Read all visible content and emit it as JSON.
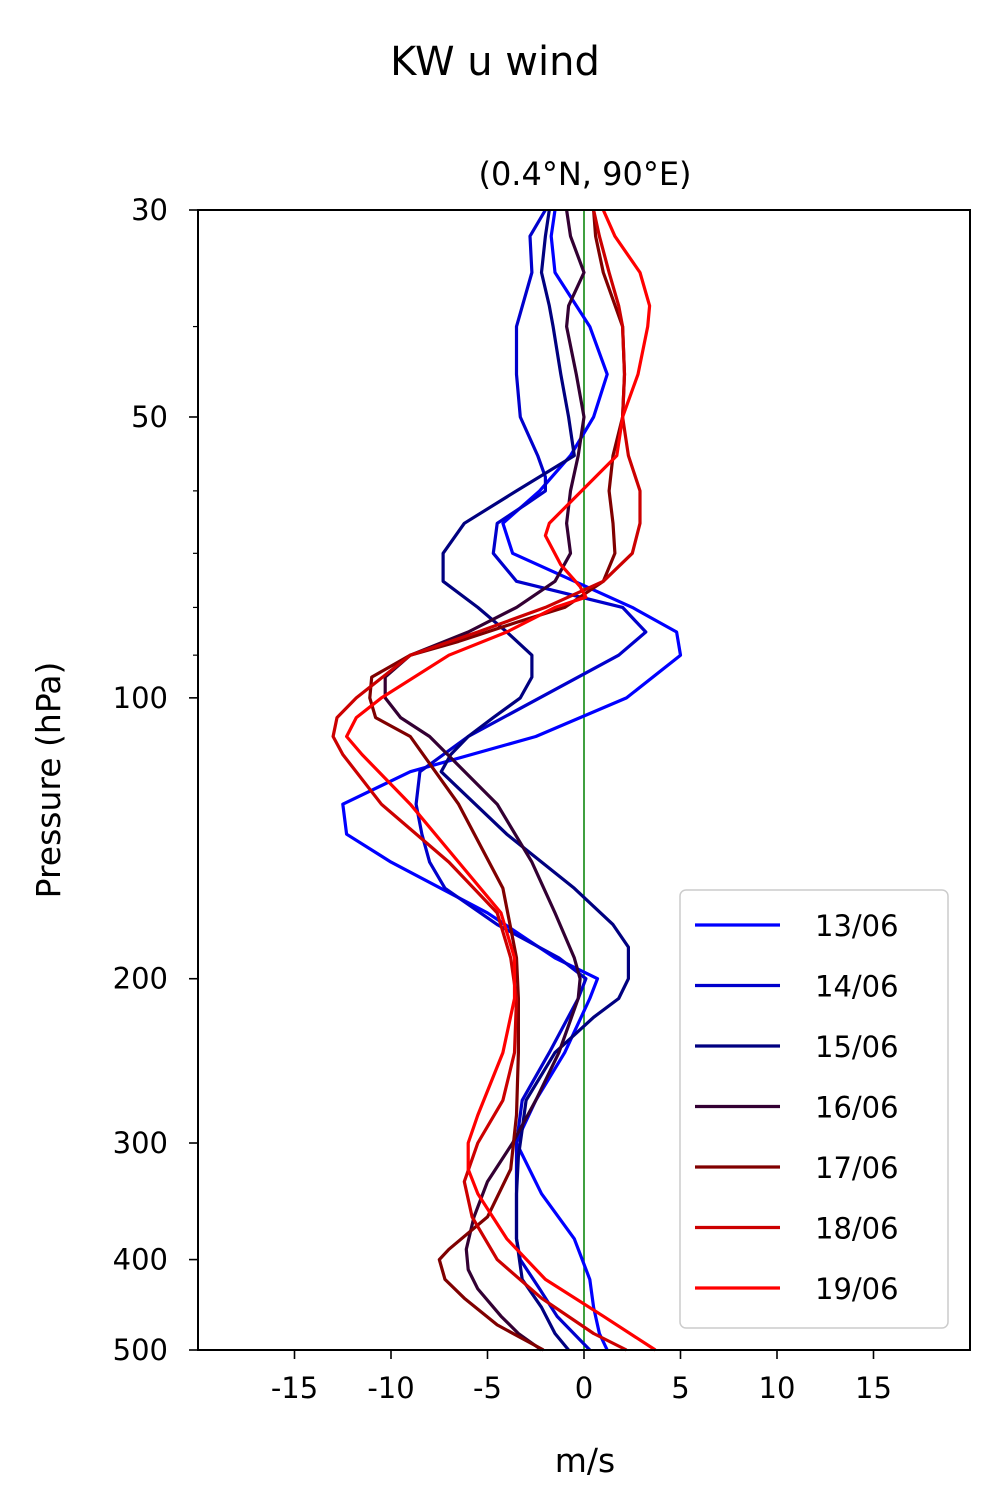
{
  "chart_data": {
    "type": "line",
    "title": "KW u wind",
    "subtitle": "(0.4°N, 90°E)",
    "xlabel": "m/s",
    "ylabel": "Pressure (hPa)",
    "xlim": [
      -20,
      20
    ],
    "ylim": [
      500,
      30
    ],
    "y_scale": "log",
    "xticks": [
      -15,
      -10,
      -5,
      0,
      5,
      10,
      15
    ],
    "xtick_labels": [
      "-15",
      "-10",
      "-5",
      "0",
      "5",
      "10",
      "15"
    ],
    "yticks": [
      30,
      50,
      100,
      200,
      300,
      400,
      500
    ],
    "ytick_labels": [
      "30",
      "50",
      "100",
      "200",
      "300",
      "400",
      "500"
    ],
    "minor_yticks": [
      40,
      60,
      70,
      80,
      90
    ],
    "zero_line_color": "#008000",
    "grid": false,
    "legend_position": "lower right",
    "series": [
      {
        "name": "13/06",
        "color": "#0000ff",
        "x": [
          -1.5,
          -1.7,
          -1.5,
          0.3,
          1.2,
          0.5,
          -0.7,
          -2.3,
          -4.2,
          -3.7,
          2.5,
          4.8,
          5,
          2.2,
          -2.5,
          -9,
          -12.5,
          -12.3,
          -10,
          -5,
          -1.5,
          0.7,
          0.3,
          -1,
          -2.5,
          -3.2,
          -3.5,
          -2.2,
          -0.5,
          0.3,
          0.5,
          0.8,
          1.2
        ],
        "y": [
          30,
          32,
          35,
          40,
          45,
          50,
          55,
          60,
          65,
          70,
          80,
          85,
          90,
          100,
          110,
          120,
          130,
          140,
          150,
          170,
          190,
          200,
          210,
          240,
          270,
          290,
          300,
          340,
          380,
          420,
          450,
          480,
          500
        ]
      },
      {
        "name": "14/06",
        "color": "#0000cc",
        "x": [
          -2,
          -2.8,
          -2.7,
          -3.5,
          -3.5,
          -3.3,
          -2.4,
          -2,
          -2,
          -3,
          -4.5,
          -4.7,
          -3.5,
          2,
          3.2,
          1.8,
          -6,
          -8.5,
          -8.7,
          -8.4,
          -8,
          -7.2,
          -4.5,
          -1.3,
          0.1,
          -0.3,
          -1.8,
          -3.2,
          -3.5,
          -3.5,
          -3.5,
          -3.3,
          -2.3,
          -1.4,
          0.3
        ],
        "y": [
          30,
          32,
          35,
          40,
          45,
          50,
          55,
          58,
          60,
          62,
          65,
          70,
          75,
          80,
          85,
          90,
          110,
          120,
          130,
          140,
          150,
          160,
          175,
          190,
          200,
          210,
          240,
          270,
          300,
          340,
          380,
          400,
          430,
          460,
          500
        ]
      },
      {
        "name": "15/06",
        "color": "#000080",
        "x": [
          -1.8,
          -2,
          -2.2,
          -1.8,
          -1.6,
          -1.2,
          -0.8,
          -0.5,
          -3.5,
          -6.2,
          -7.3,
          -7.3,
          -5.5,
          -4,
          -2.7,
          -2.7,
          -3.3,
          -4.7,
          -6,
          -6.9,
          -7.4,
          -6.5,
          -4,
          -0.5,
          1.5,
          2.3,
          2.3,
          1.8,
          0.5,
          -1.5,
          -3,
          -3.2,
          -3.4,
          -3.5,
          -3.5,
          -3.2,
          -2.2,
          -1.5,
          -0.8
        ],
        "y": [
          30,
          32,
          35,
          38,
          40,
          45,
          50,
          55,
          60,
          65,
          70,
          75,
          80,
          85,
          90,
          95,
          100,
          105,
          110,
          115,
          120,
          125,
          140,
          160,
          175,
          185,
          200,
          210,
          220,
          240,
          270,
          290,
          310,
          340,
          380,
          420,
          450,
          480,
          500
        ]
      },
      {
        "name": "16/06",
        "color": "#330033",
        "x": [
          -0.9,
          -0.7,
          0,
          -0.8,
          -0.9,
          -0.4,
          0,
          -0.3,
          -0.7,
          -0.9,
          -0.7,
          -1.5,
          -3.5,
          -6,
          -9,
          -10.3,
          -10.3,
          -9.5,
          -8,
          -4.5,
          -2.7,
          -1.5,
          -0.5,
          -0.2,
          -0.3,
          -1.3,
          -2.5,
          -3.7,
          -5,
          -5.7,
          -6.1,
          -6,
          -5.5,
          -4.3,
          -3.4,
          -2.2
        ],
        "y": [
          30,
          32,
          35,
          38,
          40,
          45,
          50,
          55,
          60,
          65,
          70,
          75,
          80,
          85,
          90,
          95,
          100,
          105,
          110,
          130,
          150,
          170,
          190,
          200,
          210,
          240,
          270,
          300,
          330,
          360,
          390,
          410,
          430,
          460,
          480,
          500
        ]
      },
      {
        "name": "17/06",
        "color": "#800000",
        "x": [
          0.5,
          0.6,
          1,
          2,
          2.1,
          2,
          1.5,
          1.3,
          1.5,
          1.6,
          1,
          -1,
          -3.5,
          -6.5,
          -9,
          -11,
          -11.1,
          -10.8,
          -9,
          -6.5,
          -4.2,
          -3.5,
          -3.4,
          -3.4,
          -3.5,
          -3.8,
          -5,
          -7,
          -7.5,
          -7.2,
          -6.2,
          -4.5,
          -2.1
        ],
        "y": [
          30,
          32,
          35,
          40,
          45,
          50,
          55,
          60,
          65,
          70,
          75,
          80,
          83,
          87,
          90,
          95,
          100,
          105,
          110,
          130,
          160,
          190,
          210,
          240,
          280,
          320,
          360,
          390,
          400,
          420,
          440,
          470,
          500
        ]
      },
      {
        "name": "18/06",
        "color": "#cc0000",
        "x": [
          0.5,
          0.8,
          1.3,
          1.8,
          2,
          2.1,
          2,
          2.3,
          2.9,
          2.9,
          2.5,
          1,
          -2,
          -5.5,
          -9,
          -11.8,
          -12.8,
          -13,
          -12.5,
          -10.5,
          -7,
          -4.5,
          -3.8,
          -3.5,
          -3.6,
          -4.2,
          -5.5,
          -6.2,
          -5.8,
          -4.5,
          -2.2,
          0.5,
          2.2
        ],
        "y": [
          30,
          32,
          35,
          38,
          40,
          45,
          50,
          55,
          60,
          65,
          70,
          75,
          80,
          85,
          90,
          100,
          105,
          110,
          115,
          130,
          150,
          170,
          190,
          210,
          240,
          270,
          300,
          330,
          360,
          400,
          440,
          480,
          500
        ]
      },
      {
        "name": "19/06",
        "color": "#ff0000",
        "x": [
          1,
          1.6,
          2.9,
          3.4,
          3.3,
          2.8,
          2,
          1.7,
          -1.8,
          -2,
          -1.2,
          -0.2,
          0.1,
          -1.5,
          -4,
          -7,
          -10.5,
          -11.8,
          -12.3,
          -11.5,
          -9,
          -6.5,
          -4.3,
          -3.6,
          -3.6,
          -4.2,
          -5.5,
          -6,
          -6,
          -5.5,
          -4,
          -2,
          1,
          3.7
        ],
        "y": [
          30,
          32,
          35,
          38,
          40,
          45,
          50,
          55,
          65,
          67,
          72,
          76,
          78,
          80,
          85,
          90,
          100,
          105,
          110,
          115,
          130,
          150,
          170,
          190,
          210,
          240,
          280,
          300,
          320,
          340,
          380,
          420,
          460,
          500
        ]
      }
    ]
  }
}
